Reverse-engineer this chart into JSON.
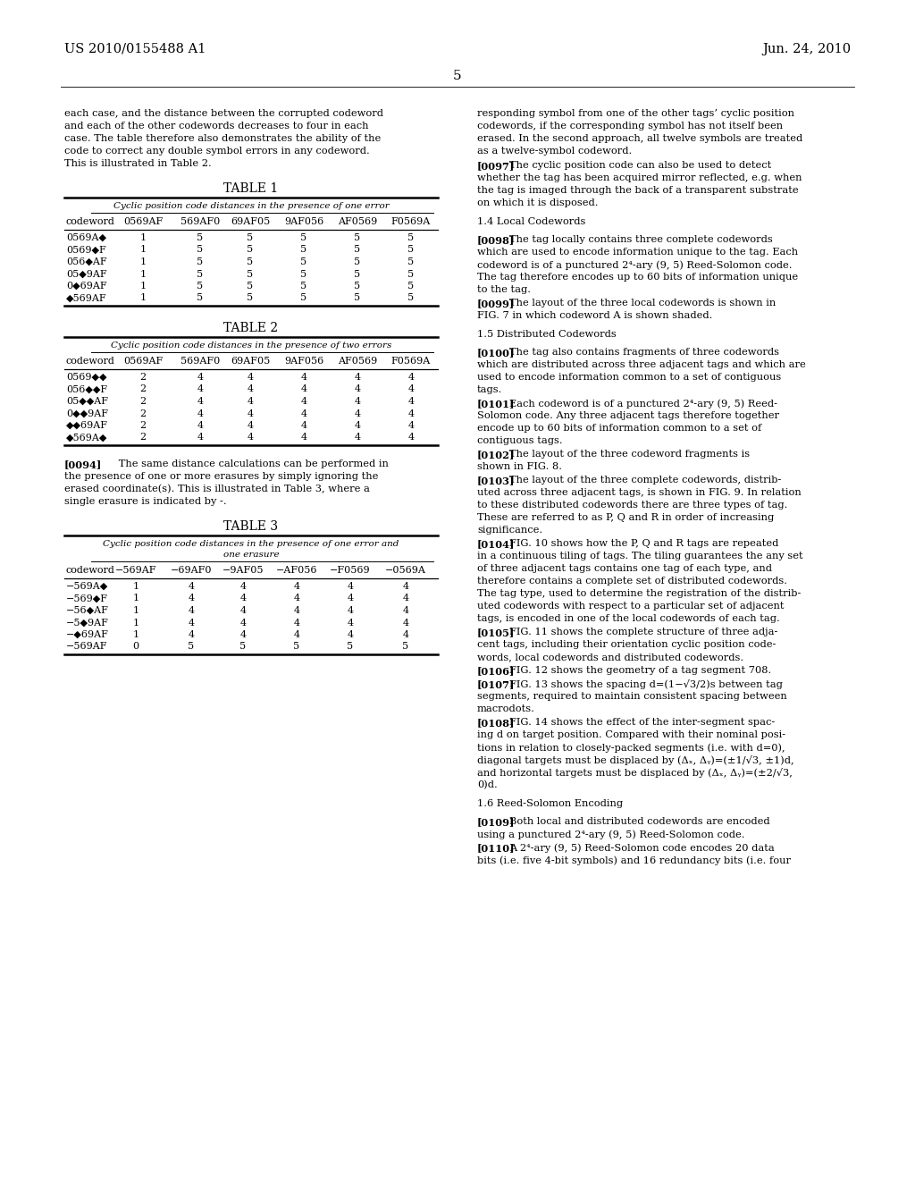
{
  "header_left": "US 2010/0155488 A1",
  "header_right": "Jun. 24, 2010",
  "page_number": "5",
  "background_color": "#ffffff",
  "text_color": "#000000",
  "left_intro": [
    "each case, and the distance between the corrupted codeword",
    "and each of the other codewords decreases to four in each",
    "case. The table therefore also demonstrates the ability of the",
    "code to correct any double symbol errors in any codeword.",
    "This is illustrated in Table 2."
  ],
  "table1_title": "TABLE 1",
  "table1_subtitle": "Cyclic position code distances in the presence of one error",
  "table1_headers": [
    "codeword",
    "0569AF",
    "569AF0",
    "69AF05",
    "9AF056",
    "AF0569",
    "F0569A"
  ],
  "table1_rows": [
    [
      "0569A◆",
      "1",
      "5",
      "5",
      "5",
      "5",
      "5"
    ],
    [
      "0569◆F",
      "1",
      "5",
      "5",
      "5",
      "5",
      "5"
    ],
    [
      "056◆AF",
      "1",
      "5",
      "5",
      "5",
      "5",
      "5"
    ],
    [
      "05◆9AF",
      "1",
      "5",
      "5",
      "5",
      "5",
      "5"
    ],
    [
      "0◆69AF",
      "1",
      "5",
      "5",
      "5",
      "5",
      "5"
    ],
    [
      "◆569AF",
      "1",
      "5",
      "5",
      "5",
      "5",
      "5"
    ]
  ],
  "table2_title": "TABLE 2",
  "table2_subtitle": "Cyclic position code distances in the presence of two errors",
  "table2_headers": [
    "codeword",
    "0569AF",
    "569AF0",
    "69AF05",
    "9AF056",
    "AF0569",
    "F0569A"
  ],
  "table2_rows": [
    [
      "0569◆◆",
      "2",
      "4",
      "4",
      "4",
      "4",
      "4"
    ],
    [
      "056◆◆F",
      "2",
      "4",
      "4",
      "4",
      "4",
      "4"
    ],
    [
      "05◆◆AF",
      "2",
      "4",
      "4",
      "4",
      "4",
      "4"
    ],
    [
      "0◆◆9AF",
      "2",
      "4",
      "4",
      "4",
      "4",
      "4"
    ],
    [
      "◆◆69AF",
      "2",
      "4",
      "4",
      "4",
      "4",
      "4"
    ],
    [
      "◆569A◆",
      "2",
      "4",
      "4",
      "4",
      "4",
      "4"
    ]
  ],
  "para0094_lines": [
    "[0094]  The same distance calculations can be performed in",
    "the presence of one or more erasures by simply ignoring the",
    "erased coordinate(s). This is illustrated in Table 3, where a",
    "single erasure is indicated by -."
  ],
  "table3_title": "TABLE 3",
  "table3_subtitle1": "Cyclic position code distances in the presence of one error and",
  "table3_subtitle2": "one erasure",
  "table3_headers": [
    "codeword",
    "−569AF",
    "−69AF0",
    "−9AF05",
    "−AF056",
    "−F0569",
    "−0569A"
  ],
  "table3_rows": [
    [
      "−569A◆",
      "1",
      "4",
      "4",
      "4",
      "4",
      "4"
    ],
    [
      "−569◆F",
      "1",
      "4",
      "4",
      "4",
      "4",
      "4"
    ],
    [
      "−56◆AF",
      "1",
      "4",
      "4",
      "4",
      "4",
      "4"
    ],
    [
      "−5◆9AF",
      "1",
      "4",
      "4",
      "4",
      "4",
      "4"
    ],
    [
      "−◆69AF",
      "1",
      "4",
      "4",
      "4",
      "4",
      "4"
    ],
    [
      "−569AF",
      "0",
      "5",
      "5",
      "5",
      "5",
      "5"
    ]
  ],
  "right_paragraphs": [
    {
      "type": "body",
      "lines": [
        "responding symbol from one of the other tags’ cyclic position",
        "codewords, if the corresponding symbol has not itself been",
        "erased. In the second approach, all twelve symbols are treated",
        "as a twelve-symbol codeword."
      ]
    },
    {
      "type": "numbered",
      "tag": "[0097]",
      "lines": [
        "   The cyclic position code can also be used to detect",
        "whether the tag has been acquired mirror reflected, e.g. when",
        "the tag is imaged through the back of a transparent substrate",
        "on which it is disposed."
      ]
    },
    {
      "type": "section",
      "lines": [
        "1.4 Local Codewords"
      ]
    },
    {
      "type": "numbered",
      "tag": "[0098]",
      "lines": [
        "   The tag locally contains three complete codewords",
        "which are used to encode information unique to the tag. Each",
        "codeword is of a punctured 2⁴-ary (9, 5) Reed-Solomon code.",
        "The tag therefore encodes up to 60 bits of information unique",
        "to the tag."
      ]
    },
    {
      "type": "numbered",
      "tag": "[0099]",
      "lines": [
        "   The layout of the three local codewords is shown in",
        "FIG. 7 in which codeword A is shown shaded."
      ]
    },
    {
      "type": "section",
      "lines": [
        "1.5 Distributed Codewords"
      ]
    },
    {
      "type": "numbered",
      "tag": "[0100]",
      "lines": [
        "   The tag also contains fragments of three codewords",
        "which are distributed across three adjacent tags and which are",
        "used to encode information common to a set of contiguous",
        "tags."
      ]
    },
    {
      "type": "numbered",
      "tag": "[0101]",
      "lines": [
        "   Each codeword is of a punctured 2⁴-ary (9, 5) Reed-",
        "Solomon code. Any three adjacent tags therefore together",
        "encode up to 60 bits of information common to a set of",
        "contiguous tags."
      ]
    },
    {
      "type": "numbered",
      "tag": "[0102]",
      "lines": [
        "   The layout of the three codeword fragments is",
        "shown in FIG. 8."
      ]
    },
    {
      "type": "numbered",
      "tag": "[0103]",
      "lines": [
        "   The layout of the three complete codewords, distrib-",
        "uted across three adjacent tags, is shown in FIG. 9. In relation",
        "to these distributed codewords there are three types of tag.",
        "These are referred to as P, Q and R in order of increasing",
        "significance."
      ]
    },
    {
      "type": "numbered",
      "tag": "[0104]",
      "lines": [
        "   FIG. 10 shows how the P, Q and R tags are repeated",
        "in a continuous tiling of tags. The tiling guarantees the any set",
        "of three adjacent tags contains one tag of each type, and",
        "therefore contains a complete set of distributed codewords.",
        "The tag type, used to determine the registration of the distrib-",
        "uted codewords with respect to a particular set of adjacent",
        "tags, is encoded in one of the local codewords of each tag."
      ]
    },
    {
      "type": "numbered",
      "tag": "[0105]",
      "lines": [
        "   FIG. 11 shows the complete structure of three adja-",
        "cent tags, including their orientation cyclic position code-",
        "words, local codewords and distributed codewords."
      ]
    },
    {
      "type": "numbered",
      "tag": "[0106]",
      "lines": [
        "   FIG. 12 shows the geometry of a tag segment 708."
      ]
    },
    {
      "type": "numbered",
      "tag": "[0107]",
      "lines": [
        "   FIG. 13 shows the spacing d=(1−√3/2)s between tag",
        "segments, required to maintain consistent spacing between",
        "macrodots."
      ]
    },
    {
      "type": "numbered",
      "tag": "[0108]",
      "lines": [
        "   FIG. 14 shows the effect of the inter-segment spac-",
        "ing d on target position. Compared with their nominal posi-",
        "tions in relation to closely-packed segments (i.e. with d=0),",
        "diagonal targets must be displaced by (Δₓ, Δᵧ)=(±1/√3, ±1)d,",
        "and horizontal targets must be displaced by (Δₓ, Δᵧ)=(±2/√3,",
        "0)d."
      ]
    },
    {
      "type": "section",
      "lines": [
        "1.6 Reed-Solomon Encoding"
      ]
    },
    {
      "type": "numbered",
      "tag": "[0109]",
      "lines": [
        "   Both local and distributed codewords are encoded",
        "using a punctured 2⁴-ary (9, 5) Reed-Solomon code."
      ]
    },
    {
      "type": "numbered",
      "tag": "[0110]",
      "lines": [
        "   A 2⁴-ary (9, 5) Reed-Solomon code encodes 20 data",
        "bits (i.e. five 4-bit symbols) and 16 redundancy bits (i.e. four"
      ]
    }
  ]
}
